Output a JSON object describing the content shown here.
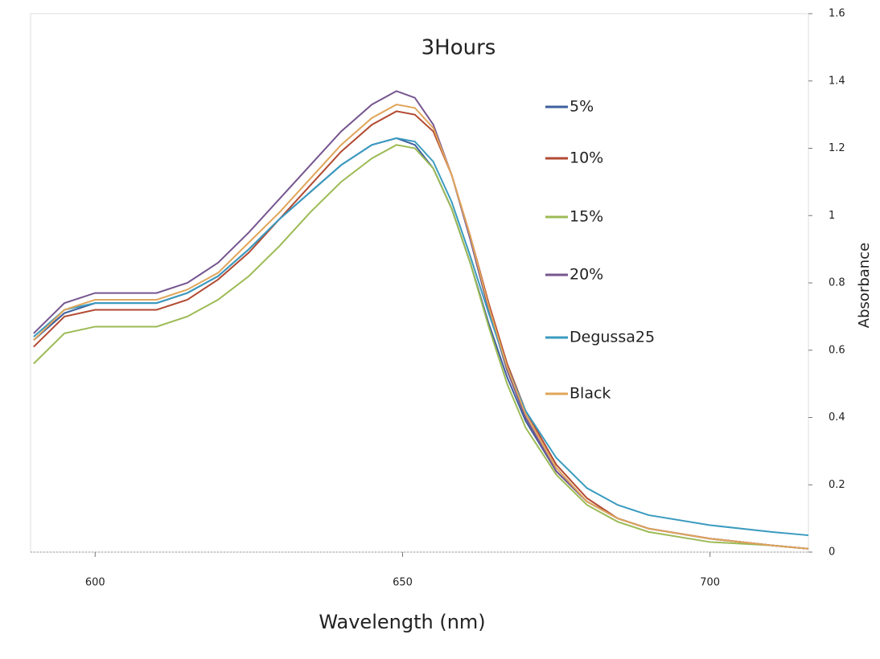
{
  "chart_data": {
    "type": "line",
    "title": "3Hours",
    "x_label": "Wavelength (nm)",
    "y_label": "Absorbance",
    "x": [
      590,
      595,
      600,
      605,
      610,
      615,
      620,
      625,
      630,
      635,
      640,
      645,
      649,
      652,
      655,
      658,
      661,
      664,
      667,
      670,
      675,
      680,
      685,
      690,
      700,
      710,
      716
    ],
    "series": [
      {
        "name": "5%",
        "color": "#3e5f9e",
        "values": [
          0.63,
          0.71,
          0.74,
          0.74,
          0.74,
          0.77,
          0.82,
          0.9,
          0.99,
          1.07,
          1.15,
          1.21,
          1.23,
          1.21,
          1.14,
          1.02,
          0.86,
          0.68,
          0.52,
          0.39,
          0.24,
          0.15,
          0.1,
          0.07,
          0.04,
          0.02,
          0.01
        ]
      },
      {
        "name": "10%",
        "color": "#b24a32",
        "values": [
          0.61,
          0.7,
          0.72,
          0.72,
          0.72,
          0.75,
          0.81,
          0.89,
          0.99,
          1.09,
          1.19,
          1.27,
          1.31,
          1.3,
          1.25,
          1.12,
          0.94,
          0.74,
          0.56,
          0.42,
          0.26,
          0.16,
          0.1,
          0.07,
          0.04,
          0.02,
          0.01
        ]
      },
      {
        "name": "15%",
        "color": "#9cbb55",
        "values": [
          0.56,
          0.65,
          0.67,
          0.67,
          0.67,
          0.7,
          0.75,
          0.82,
          0.91,
          1.01,
          1.1,
          1.17,
          1.21,
          1.2,
          1.14,
          1.02,
          0.86,
          0.67,
          0.5,
          0.37,
          0.23,
          0.14,
          0.09,
          0.06,
          0.03,
          0.02,
          0.01
        ]
      },
      {
        "name": "20%",
        "color": "#76568f",
        "values": [
          0.65,
          0.74,
          0.77,
          0.77,
          0.77,
          0.8,
          0.86,
          0.95,
          1.05,
          1.15,
          1.25,
          1.33,
          1.37,
          1.35,
          1.27,
          1.12,
          0.93,
          0.72,
          0.54,
          0.4,
          0.24,
          0.15,
          0.1,
          0.07,
          0.04,
          0.02,
          0.01
        ]
      },
      {
        "name": "Degussa25",
        "color": "#3a9bbf",
        "values": [
          0.64,
          0.72,
          0.74,
          0.74,
          0.74,
          0.77,
          0.82,
          0.9,
          0.99,
          1.07,
          1.15,
          1.21,
          1.23,
          1.22,
          1.16,
          1.04,
          0.88,
          0.71,
          0.55,
          0.42,
          0.28,
          0.19,
          0.14,
          0.11,
          0.08,
          0.06,
          0.05
        ]
      },
      {
        "name": "Black",
        "color": "#e0a55a",
        "values": [
          0.63,
          0.72,
          0.75,
          0.75,
          0.75,
          0.78,
          0.83,
          0.92,
          1.01,
          1.11,
          1.21,
          1.29,
          1.33,
          1.32,
          1.26,
          1.12,
          0.94,
          0.73,
          0.55,
          0.41,
          0.25,
          0.15,
          0.1,
          0.07,
          0.04,
          0.02,
          0.01
        ]
      }
    ],
    "xlim": [
      589.5,
      716
    ],
    "xticks": [
      600,
      650,
      700
    ],
    "ylim": [
      0,
      1.6
    ],
    "yticks": [
      0,
      0.2,
      0.4,
      0.6,
      0.8,
      1,
      1.2,
      1.4,
      1.6
    ],
    "legend": "inside-right"
  }
}
